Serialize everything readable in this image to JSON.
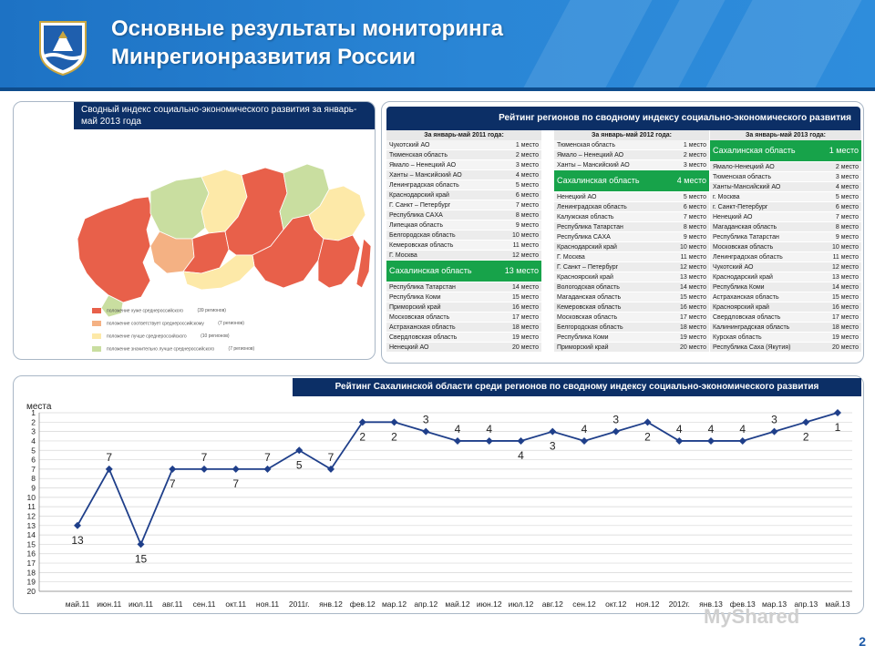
{
  "header": {
    "title_line1": "Основные результаты мониторинга",
    "title_line2": "Минрегионразвития России"
  },
  "map": {
    "caption": "Сводный индекс социально-экономического развития за январь- май 2013 года",
    "legend": [
      {
        "label": "положение хуже среднероссийского",
        "count": "(39 регионов)",
        "color": "#e8604a"
      },
      {
        "label": "положение соответствует среднероссийскому",
        "count": "(7 регионов)",
        "color": "#f4b183"
      },
      {
        "label": "положение лучше среднероссийского",
        "count": "(10 регионов)",
        "color": "#fde9a8"
      },
      {
        "label": "положение значительно лучше среднероссийского",
        "count": "(7 регионов)",
        "color": "#c9dea0"
      }
    ]
  },
  "rating": {
    "caption": "Рейтинг регионов по сводному индексу социально-экономического развития",
    "columns": [
      {
        "header": "За январь-май 2011 года:",
        "rows": [
          {
            "name": "Чукотский АО",
            "place": "1 место"
          },
          {
            "name": "Тюменская область",
            "place": "2 место"
          },
          {
            "name": "Ямало – Ненецкий АО",
            "place": "3 место"
          },
          {
            "name": "Ханты – Мансийский АО",
            "place": "4 место"
          },
          {
            "name": "Ленинградская область",
            "place": "5 место"
          },
          {
            "name": "Краснодарский край",
            "place": "6 место"
          },
          {
            "name": "Г. Санкт – Петербург",
            "place": "7 место"
          },
          {
            "name": "Республика САХА",
            "place": "8 место"
          },
          {
            "name": "Липецкая область",
            "place": "9 место"
          },
          {
            "name": "Белгородская область",
            "place": "10 место"
          },
          {
            "name": "Кемеровская область",
            "place": "11 место"
          },
          {
            "name": "Г. Москва",
            "place": "12 место"
          },
          {
            "name": "Сахалинская область",
            "place": "13 место",
            "highlight": true
          },
          {
            "name": "Республика Татарстан",
            "place": "14 место"
          },
          {
            "name": "Республика Коми",
            "place": "15 место"
          },
          {
            "name": "Приморский край",
            "place": "16 место"
          },
          {
            "name": "Московская область",
            "place": "17 место"
          },
          {
            "name": "Астраханская область",
            "place": "18 место"
          },
          {
            "name": "Свердловская область",
            "place": "19 место"
          },
          {
            "name": "Ненецкий АО",
            "place": "20 место"
          }
        ]
      },
      {
        "header": "За январь-май 2012 года:",
        "rows": [
          {
            "name": "Тюменская область",
            "place": "1 место"
          },
          {
            "name": "Ямало – Ненецкий АО",
            "place": "2 место"
          },
          {
            "name": "Ханты – Мансийский АО",
            "place": "3 место"
          },
          {
            "name": "Сахалинская область",
            "place": "4 место",
            "highlight": true
          },
          {
            "name": "Ненецкий АО",
            "place": "5 место"
          },
          {
            "name": "Ленинградская область",
            "place": "6 место"
          },
          {
            "name": "Калужская область",
            "place": "7 место"
          },
          {
            "name": "Республика Татарстан",
            "place": "8 место"
          },
          {
            "name": "Республика САХА",
            "place": "9 место"
          },
          {
            "name": "Краснодарский край",
            "place": "10 место"
          },
          {
            "name": "Г. Москва",
            "place": "11 место"
          },
          {
            "name": "Г. Санкт – Петербург",
            "place": "12 место"
          },
          {
            "name": "Красноярский край",
            "place": "13 место"
          },
          {
            "name": "Вологодская область",
            "place": "14 место"
          },
          {
            "name": "Магаданская область",
            "place": "15 место"
          },
          {
            "name": "Кемеровская область",
            "place": "16 место"
          },
          {
            "name": "Московская область",
            "place": "17 место"
          },
          {
            "name": "Белгородская область",
            "place": "18 место"
          },
          {
            "name": "Республика Коми",
            "place": "19 место"
          },
          {
            "name": "Приморский край",
            "place": "20 место"
          }
        ]
      },
      {
        "header": "За январь-май 2013 года:",
        "rows": [
          {
            "name": "Сахалинская область",
            "place": "1 место",
            "highlight": true
          },
          {
            "name": "Ямало-Ненецкий АО",
            "place": "2 место"
          },
          {
            "name": "Тюменская область",
            "place": "3 место"
          },
          {
            "name": "Ханты-Мансийский АО",
            "place": "4 место"
          },
          {
            "name": "г. Москва",
            "place": "5 место"
          },
          {
            "name": "г. Санкт-Петербург",
            "place": "6 место"
          },
          {
            "name": "Ненецкий АО",
            "place": "7 место"
          },
          {
            "name": "Магаданская область",
            "place": "8 место"
          },
          {
            "name": "Республика Татарстан",
            "place": "9 место"
          },
          {
            "name": "Московская область",
            "place": "10 место"
          },
          {
            "name": "Ленинградская область",
            "place": "11 место"
          },
          {
            "name": "Чукотский АО",
            "place": "12 место"
          },
          {
            "name": "Краснодарский край",
            "place": "13 место"
          },
          {
            "name": "Республика Коми",
            "place": "14 место"
          },
          {
            "name": "Астраханская область",
            "place": "15 место"
          },
          {
            "name": "Красноярский край",
            "place": "16 место"
          },
          {
            "name": "Свердловская область",
            "place": "17 место"
          },
          {
            "name": "Калининградская область",
            "place": "18 место"
          },
          {
            "name": "Курская область",
            "place": "19 место"
          },
          {
            "name": "Республика Саха (Якутия)",
            "place": "20 место"
          }
        ]
      }
    ]
  },
  "chart_data": {
    "type": "line",
    "title": "Рейтинг Сахалинской области среди регионов по сводному индексу социально-экономического развития",
    "ylabel": "места",
    "xlabel": "",
    "ylim": [
      1,
      20
    ],
    "y_inverted": true,
    "yticks": [
      1,
      2,
      3,
      4,
      5,
      6,
      7,
      8,
      9,
      10,
      11,
      12,
      13,
      14,
      15,
      16,
      17,
      18,
      19,
      20
    ],
    "categories": [
      "май.11",
      "июн.11",
      "июл.11",
      "авг.11",
      "сен.11",
      "окт.11",
      "ноя.11",
      "2011г.",
      "янв.12",
      "фев.12",
      "мар.12",
      "апр.12",
      "май.12",
      "июн.12",
      "июл.12",
      "авг.12",
      "сен.12",
      "окт.12",
      "ноя.12",
      "2012г.",
      "янв.13",
      "фев.13",
      "мар.13",
      "апр.13",
      "май.13"
    ],
    "values": [
      13,
      7,
      15,
      7,
      7,
      7,
      7,
      5,
      7,
      2,
      2,
      3,
      4,
      4,
      4,
      3,
      4,
      3,
      2,
      4,
      4,
      4,
      3,
      2,
      1
    ],
    "label_position": [
      "below",
      "above",
      "below",
      "below",
      "above",
      "below",
      "above",
      "below",
      "above",
      "below",
      "below",
      "above",
      "above",
      "above",
      "below",
      "below",
      "above",
      "above",
      "below",
      "above",
      "above",
      "above",
      "above",
      "below",
      "below"
    ],
    "grid": true,
    "line_color": "#1f3f8a"
  },
  "footer": {
    "page_number": "2",
    "watermark": "MyShared"
  }
}
